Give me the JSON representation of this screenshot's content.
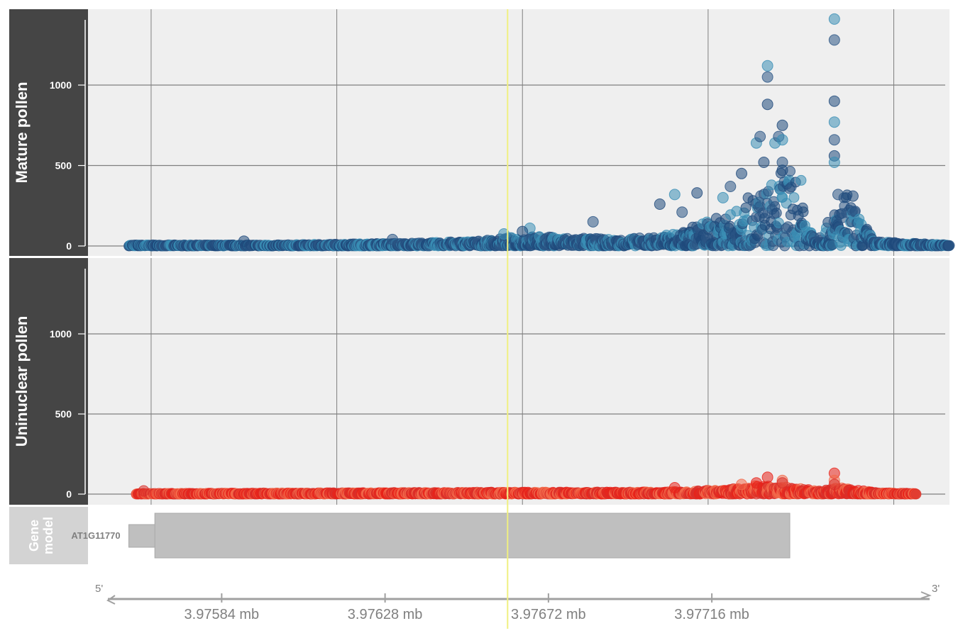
{
  "chart_data": {
    "type": "scatter",
    "title": "",
    "xlabel": "",
    "x_unit": "mb",
    "xlim": [
      3.97548,
      3.9778
    ],
    "x_ticks": [
      "3.97584 mb",
      "3.97628 mb",
      "3.97672 mb",
      "3.97716 mb"
    ],
    "x_tick_values": [
      3.97584,
      3.97628,
      3.97672,
      3.97716
    ],
    "x_grid_values": [
      3.97565,
      3.97615,
      3.97665,
      3.97715,
      3.97765
    ],
    "highlight_x": 3.97661,
    "ylim": [
      0,
      1450
    ],
    "y_ticks": [
      0,
      500,
      1000
    ],
    "grid": true,
    "strand_start_label": "5'",
    "strand_end_label": "3'",
    "panels": [
      {
        "name": "Mature pollen",
        "colors": [
          "#1f4a7c",
          "#3a8eb5",
          "#2b5585"
        ],
        "x_start": 3.97559,
        "x_end": 3.9778,
        "profile": [
          [
            3.97559,
            5
          ],
          [
            3.976,
            5
          ],
          [
            3.9764,
            15
          ],
          [
            3.97655,
            25
          ],
          [
            3.97665,
            45
          ],
          [
            3.97675,
            40
          ],
          [
            3.9769,
            30
          ],
          [
            3.977,
            40
          ],
          [
            3.97708,
            60
          ],
          [
            3.97712,
            100
          ],
          [
            3.97716,
            120
          ],
          [
            3.97722,
            150
          ],
          [
            3.97726,
            220
          ],
          [
            3.9773,
            260
          ],
          [
            3.97733,
            300
          ],
          [
            3.97736,
            350
          ],
          [
            3.9774,
            300
          ],
          [
            3.97742,
            100
          ],
          [
            3.97745,
            60
          ],
          [
            3.97748,
            120
          ],
          [
            3.97752,
            250
          ],
          [
            3.97755,
            150
          ],
          [
            3.9776,
            20
          ],
          [
            3.9778,
            5
          ]
        ],
        "peaks": [
          [
            3.97702,
            260
          ],
          [
            3.97706,
            320
          ],
          [
            3.97708,
            210
          ],
          [
            3.97712,
            330
          ],
          [
            3.97719,
            300
          ],
          [
            3.97721,
            370
          ],
          [
            3.97724,
            450
          ],
          [
            3.97728,
            640
          ],
          [
            3.97729,
            680
          ],
          [
            3.9773,
            520
          ],
          [
            3.97731,
            1120
          ],
          [
            3.97731,
            1050
          ],
          [
            3.97731,
            880
          ],
          [
            3.97733,
            640
          ],
          [
            3.97734,
            680
          ],
          [
            3.97735,
            750
          ],
          [
            3.97735,
            660
          ],
          [
            3.97735,
            520
          ],
          [
            3.97735,
            470
          ],
          [
            3.97749,
            1410
          ],
          [
            3.97749,
            1280
          ],
          [
            3.97749,
            900
          ],
          [
            3.97749,
            770
          ],
          [
            3.97749,
            660
          ],
          [
            3.97749,
            560
          ],
          [
            3.97749,
            520
          ],
          [
            3.9775,
            320
          ],
          [
            3.97754,
            310
          ],
          [
            3.97667,
            110
          ],
          [
            3.97684,
            150
          ],
          [
            3.97665,
            90
          ],
          [
            3.9766,
            75
          ],
          [
            3.9763,
            40
          ],
          [
            3.9759,
            30
          ]
        ]
      },
      {
        "name": "Uninuclear pollen",
        "colors": [
          "#e8231a",
          "#f26a4b",
          "#d9302a"
        ],
        "x_start": 3.97561,
        "x_end": 3.97771,
        "profile": [
          [
            3.97561,
            3
          ],
          [
            3.9764,
            8
          ],
          [
            3.977,
            10
          ],
          [
            3.9772,
            20
          ],
          [
            3.97728,
            40
          ],
          [
            3.97735,
            35
          ],
          [
            3.97745,
            15
          ],
          [
            3.9775,
            30
          ],
          [
            3.9776,
            8
          ],
          [
            3.97771,
            3
          ]
        ],
        "peaks": [
          [
            3.97731,
            105
          ],
          [
            3.97735,
            85
          ],
          [
            3.97735,
            70
          ],
          [
            3.97749,
            130
          ],
          [
            3.97749,
            85
          ],
          [
            3.97749,
            60
          ],
          [
            3.97728,
            70
          ],
          [
            3.97724,
            60
          ],
          [
            3.97563,
            20
          ],
          [
            3.97706,
            40
          ]
        ]
      }
    ],
    "gene_model": {
      "track_label": "Gene model",
      "gene_name": "AT1G11770",
      "utr_start": 3.97559,
      "cds_start": 3.97566,
      "end": 3.97737
    }
  },
  "colors": {
    "strip_background": "#454545",
    "gene_strip_background": "#d3d3d3",
    "panel_background": "#efefef",
    "grid": "#7f7f7f",
    "gene_fill": "#bfbfbf",
    "highlight": "#f0f080"
  }
}
